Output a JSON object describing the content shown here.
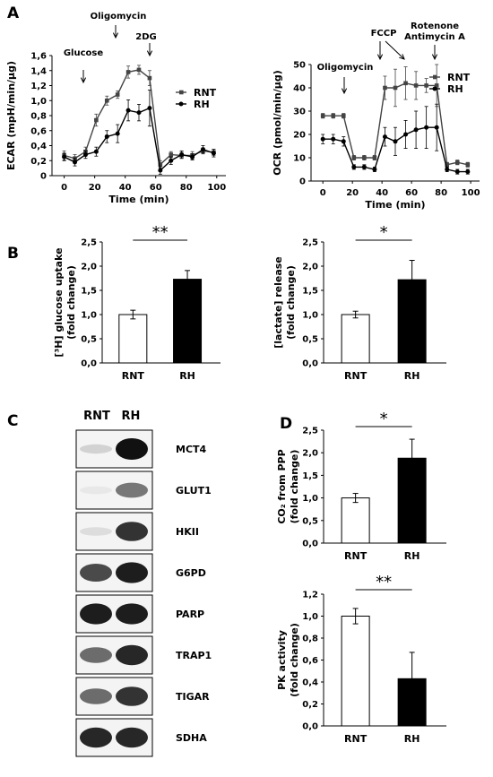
{
  "panel_labels": {
    "A": "A",
    "B": "B",
    "C": "C",
    "D": "D"
  },
  "chart_data": [
    {
      "id": "ecar",
      "type": "line",
      "ylabel": "ECAR (mpH/min/µg)",
      "xlabel": "Time (min)",
      "xlim": [
        -8,
        106
      ],
      "ylim": [
        0,
        1.6
      ],
      "xticks": [
        "0",
        "20",
        "40",
        "60",
        "80",
        "100"
      ],
      "yticks": [
        "0",
        "0,2",
        "0,4",
        "0,6",
        "0,8",
        "1,0",
        "1,2",
        "1,4",
        "1,6"
      ],
      "annotations": [
        "Glucose",
        "Oligomycin",
        "2DG"
      ],
      "series": [
        {
          "name": "RNT",
          "marker": "square",
          "color": "#444444",
          "x": [
            0,
            7,
            14,
            21,
            28,
            35,
            42,
            49,
            56,
            63,
            70,
            77,
            84,
            91,
            98
          ],
          "y": [
            0.27,
            0.23,
            0.32,
            0.74,
            1.0,
            1.08,
            1.38,
            1.41,
            1.3,
            0.15,
            0.28,
            0.27,
            0.27,
            0.33,
            0.31
          ],
          "err": [
            0.06,
            0.05,
            0.06,
            0.08,
            0.06,
            0.05,
            0.08,
            0.06,
            0.1,
            0.05,
            0.04,
            0.04,
            0.05,
            0.04,
            0.04
          ]
        },
        {
          "name": "RH",
          "marker": "circle",
          "color": "#000000",
          "x": [
            0,
            7,
            14,
            21,
            28,
            35,
            42,
            49,
            56,
            63,
            70,
            77,
            84,
            91,
            98
          ],
          "y": [
            0.25,
            0.18,
            0.28,
            0.32,
            0.52,
            0.56,
            0.87,
            0.84,
            0.9,
            0.07,
            0.2,
            0.28,
            0.25,
            0.35,
            0.3
          ],
          "err": [
            0.05,
            0.05,
            0.05,
            0.06,
            0.08,
            0.12,
            0.14,
            0.11,
            0.24,
            0.05,
            0.05,
            0.05,
            0.04,
            0.05,
            0.05
          ]
        }
      ]
    },
    {
      "id": "ocr",
      "type": "line",
      "ylabel": "OCR (pmol/min/µg)",
      "xlabel": "Time (min)",
      "xlim": [
        -8,
        106
      ],
      "ylim": [
        0,
        50
      ],
      "xticks": [
        "0",
        "20",
        "40",
        "60",
        "80",
        "100"
      ],
      "yticks": [
        "0",
        "10",
        "20",
        "30",
        "40",
        "50"
      ],
      "annotations": [
        "Oligomycin",
        "FCCP",
        "Rotenone",
        "Antimycin A"
      ],
      "series": [
        {
          "name": "RNT",
          "marker": "square",
          "color": "#444444",
          "x": [
            0,
            7,
            14,
            21,
            28,
            35,
            42,
            49,
            56,
            63,
            70,
            77,
            84,
            91,
            98
          ],
          "y": [
            28,
            28,
            28,
            10,
            10,
            10,
            40,
            40,
            42,
            41,
            41,
            41,
            7,
            8,
            7
          ],
          "err": [
            1,
            1,
            1,
            1,
            1,
            1,
            5,
            8,
            7,
            6,
            3,
            9,
            1,
            1,
            1
          ]
        },
        {
          "name": "RH",
          "marker": "circle",
          "color": "#000000",
          "x": [
            0,
            7,
            14,
            21,
            28,
            35,
            42,
            49,
            56,
            63,
            70,
            77,
            84,
            91,
            98
          ],
          "y": [
            18,
            18,
            17,
            6,
            6,
            5,
            19,
            17,
            20,
            22,
            23,
            23,
            5,
            4,
            4
          ],
          "err": [
            2,
            2,
            2,
            1,
            1,
            1,
            4,
            6,
            6,
            8,
            9,
            10,
            1,
            1,
            1
          ]
        }
      ]
    },
    {
      "id": "glucose",
      "type": "bar",
      "ylabel_line1": "[³H] glucose uptake",
      "ylabel_line2": "(fold change)",
      "categories": [
        "RNT",
        "RH"
      ],
      "values": [
        1.0,
        1.73
      ],
      "errors": [
        0.09,
        0.18
      ],
      "fills": [
        "#ffffff",
        "#000000"
      ],
      "ylim": [
        0,
        2.5
      ],
      "yticks": [
        "0,0",
        "0,5",
        "1,0",
        "1,5",
        "2,0",
        "2,5"
      ],
      "significance": "**"
    },
    {
      "id": "lactate",
      "type": "bar",
      "ylabel_line1": "[lactate] release",
      "ylabel_line2": "(fold change)",
      "categories": [
        "RNT",
        "RH"
      ],
      "values": [
        1.0,
        1.72
      ],
      "errors": [
        0.07,
        0.4
      ],
      "fills": [
        "#ffffff",
        "#000000"
      ],
      "ylim": [
        0,
        2.5
      ],
      "yticks": [
        "0,0",
        "0,5",
        "1,0",
        "1,5",
        "2,0",
        "2,5"
      ],
      "significance": "*"
    },
    {
      "id": "co2",
      "type": "bar",
      "ylabel_line1": "CO₂ from PPP",
      "ylabel_line2": "(fold change)",
      "categories": [
        "RNT",
        "RH"
      ],
      "values": [
        1.0,
        1.88
      ],
      "errors": [
        0.1,
        0.42
      ],
      "fills": [
        "#ffffff",
        "#000000"
      ],
      "ylim": [
        0,
        2.5
      ],
      "yticks": [
        "0,0",
        "0,5",
        "1,0",
        "1,5",
        "2,0",
        "2,5"
      ],
      "significance": "*"
    },
    {
      "id": "pk",
      "type": "bar",
      "ylabel_line1": "PK activity",
      "ylabel_line2": "(fold change)",
      "categories": [
        "RNT",
        "RH"
      ],
      "values": [
        1.0,
        0.43
      ],
      "errors": [
        0.07,
        0.24
      ],
      "fills": [
        "#ffffff",
        "#000000"
      ],
      "ylim": [
        0,
        1.2
      ],
      "yticks": [
        "0,0",
        "0,2",
        "0,4",
        "0,6",
        "0,8",
        "1,0",
        "1,2"
      ],
      "significance": "**"
    }
  ],
  "blot": {
    "columns": [
      "RNT",
      "RH"
    ],
    "rows": [
      {
        "label": "MCT4",
        "rnt": 0.15,
        "rh": 1.0
      },
      {
        "label": "GLUT1",
        "rnt": 0.05,
        "rh": 0.55
      },
      {
        "label": "HKII",
        "rnt": 0.1,
        "rh": 0.85
      },
      {
        "label": "G6PD",
        "rnt": 0.75,
        "rh": 0.95
      },
      {
        "label": "PARP",
        "rnt": 0.95,
        "rh": 0.95
      },
      {
        "label": "TRAP1",
        "rnt": 0.6,
        "rh": 0.9
      },
      {
        "label": "TIGAR",
        "rnt": 0.6,
        "rh": 0.85
      },
      {
        "label": "SDHA",
        "rnt": 0.9,
        "rh": 0.9
      }
    ]
  }
}
